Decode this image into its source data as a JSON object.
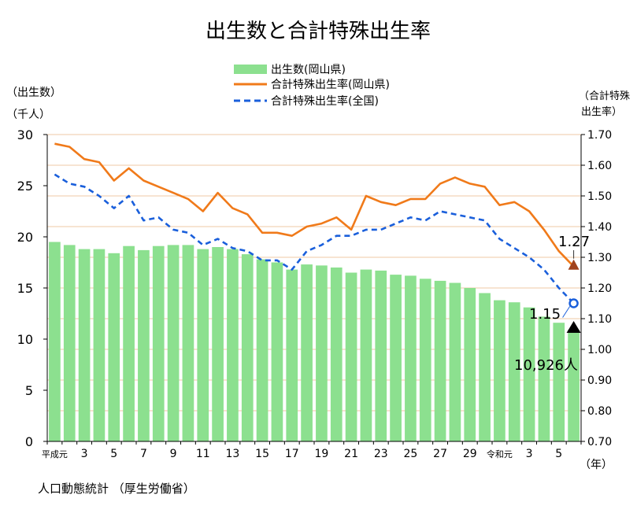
{
  "chart_data": {
    "type": "bar+line",
    "title": "出生数と合計特殊出生率",
    "left_axis_label_line1": "（出生数）",
    "left_axis_label_line2": "（千人）",
    "right_axis_label_line1": "（合計特殊",
    "right_axis_label_line2": "出生率）",
    "x_unit_label": "（年）",
    "source": "人口動態統計 （厚生労働省）",
    "left_ylim": [
      0,
      30
    ],
    "left_ticks": [
      "0",
      "5",
      "10",
      "15",
      "20",
      "25",
      "30"
    ],
    "right_ylim": [
      0.7,
      1.7
    ],
    "right_ticks": [
      "0.70",
      "0.80",
      "0.90",
      "1.00",
      "1.10",
      "1.20",
      "1.30",
      "1.40",
      "1.50",
      "1.60",
      "1.70"
    ],
    "grid": "horizontal",
    "legend_position": "top-center",
    "categories": [
      "平成元",
      "2",
      "3",
      "4",
      "5",
      "6",
      "7",
      "8",
      "9",
      "10",
      "11",
      "12",
      "13",
      "14",
      "15",
      "16",
      "17",
      "18",
      "19",
      "20",
      "21",
      "22",
      "23",
      "24",
      "25",
      "26",
      "27",
      "28",
      "29",
      "30",
      "令和元",
      "2",
      "3",
      "4",
      "5",
      "6"
    ],
    "x_tick_labels": [
      {
        "index": 0,
        "label": "平成元"
      },
      {
        "index": 2,
        "label": "3"
      },
      {
        "index": 4,
        "label": "5"
      },
      {
        "index": 6,
        "label": "7"
      },
      {
        "index": 8,
        "label": "9"
      },
      {
        "index": 10,
        "label": "11"
      },
      {
        "index": 12,
        "label": "13"
      },
      {
        "index": 14,
        "label": "15"
      },
      {
        "index": 16,
        "label": "17"
      },
      {
        "index": 18,
        "label": "19"
      },
      {
        "index": 20,
        "label": "21"
      },
      {
        "index": 22,
        "label": "23"
      },
      {
        "index": 24,
        "label": "25"
      },
      {
        "index": 26,
        "label": "27"
      },
      {
        "index": 28,
        "label": "29"
      },
      {
        "index": 30,
        "label": "令和元"
      },
      {
        "index": 32,
        "label": "3"
      },
      {
        "index": 34,
        "label": "5"
      }
    ],
    "series": [
      {
        "name": "出生数(岡山県)",
        "kind": "bar",
        "axis": "left",
        "color": "#8ce08f",
        "values": [
          19.5,
          19.2,
          18.8,
          18.8,
          18.4,
          19.1,
          18.7,
          19.1,
          19.2,
          19.2,
          18.8,
          19.0,
          18.8,
          18.3,
          17.8,
          17.5,
          16.8,
          17.3,
          17.2,
          17.0,
          16.5,
          16.8,
          16.7,
          16.3,
          16.2,
          15.9,
          15.7,
          15.5,
          15.0,
          14.5,
          13.8,
          13.6,
          13.1,
          12.2,
          11.6,
          10.926
        ]
      },
      {
        "name": "合計特殊出生率(岡山県)",
        "kind": "line",
        "axis": "right",
        "color": "#f07a1a",
        "values": [
          1.67,
          1.66,
          1.62,
          1.61,
          1.55,
          1.59,
          1.55,
          1.53,
          1.51,
          1.49,
          1.45,
          1.51,
          1.46,
          1.44,
          1.38,
          1.38,
          1.37,
          1.4,
          1.41,
          1.43,
          1.39,
          1.5,
          1.48,
          1.47,
          1.49,
          1.49,
          1.54,
          1.56,
          1.54,
          1.53,
          1.47,
          1.48,
          1.45,
          1.39,
          1.32,
          1.27
        ]
      },
      {
        "name": "合計特殊出生率(全国)",
        "kind": "line-dashed",
        "axis": "right",
        "color": "#1a5fdb",
        "values": [
          1.57,
          1.54,
          1.53,
          1.5,
          1.46,
          1.5,
          1.42,
          1.43,
          1.39,
          1.38,
          1.34,
          1.36,
          1.33,
          1.32,
          1.29,
          1.29,
          1.26,
          1.32,
          1.34,
          1.37,
          1.37,
          1.39,
          1.39,
          1.41,
          1.43,
          1.42,
          1.45,
          1.44,
          1.43,
          1.42,
          1.36,
          1.33,
          1.3,
          1.26,
          1.2,
          1.15
        ]
      }
    ],
    "annotations": {
      "okayama_rate_last": "1.27",
      "national_rate_last": "1.15",
      "births_last": "10,926人"
    }
  }
}
